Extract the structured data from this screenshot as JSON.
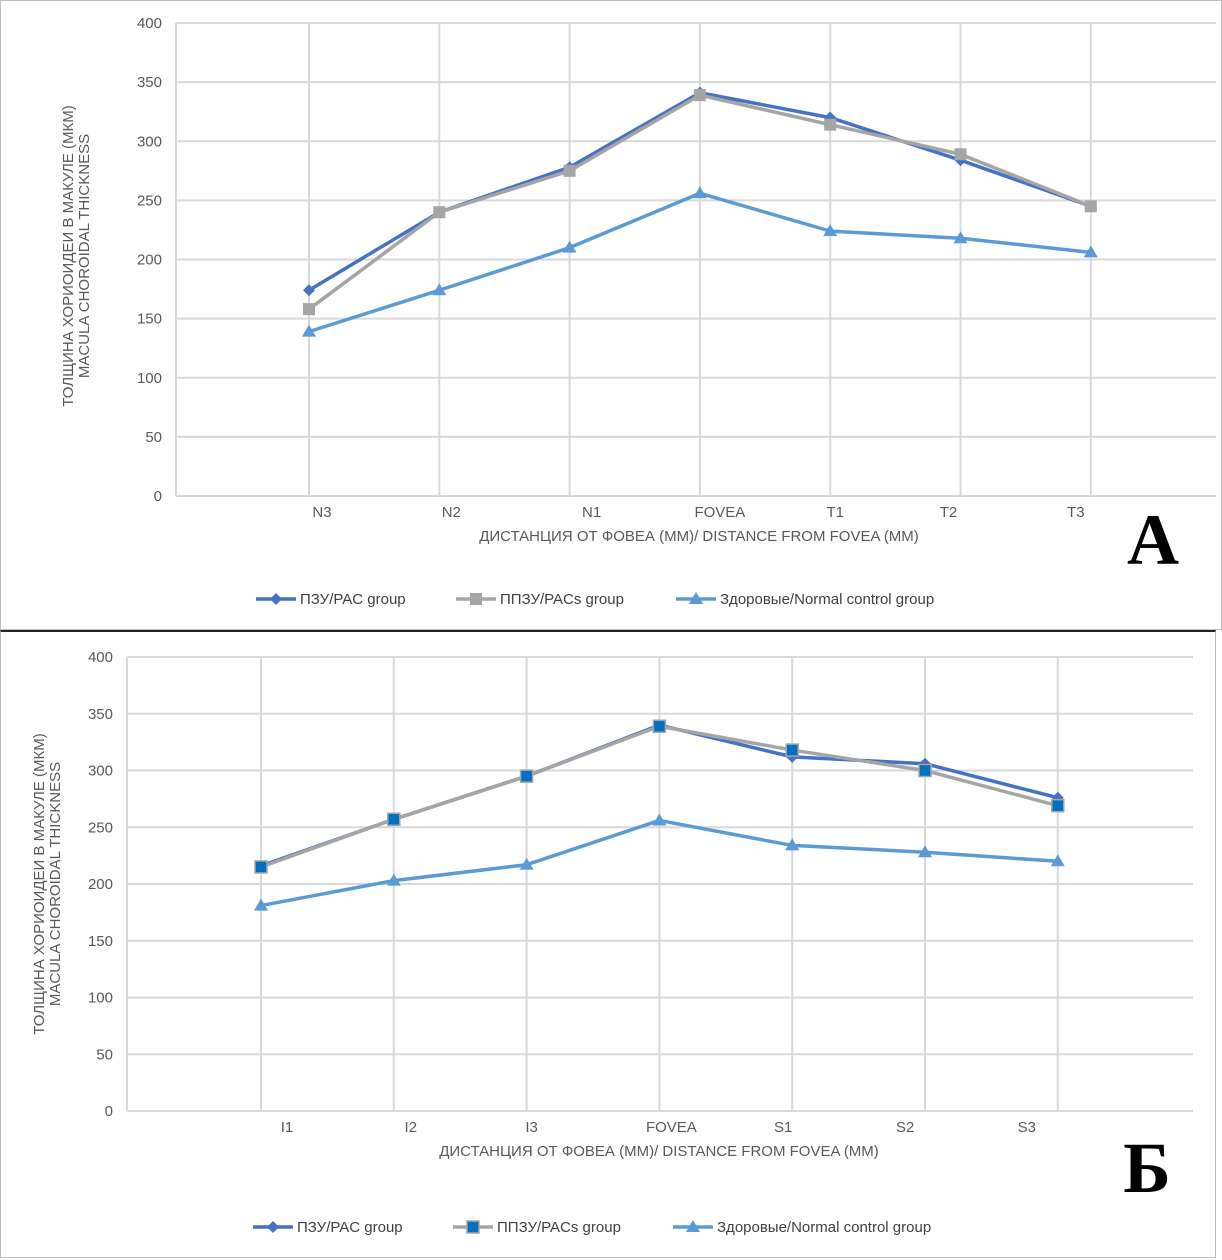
{
  "chart_data": [
    {
      "type": "line",
      "panel_label": "А",
      "title": "",
      "xlabel": "ДИСТАНЦИЯ ОТ ФОВЕА (ММ)/ DISTANCE FROM FOVEA (MM)",
      "ylabel": [
        "ТОЛЩИНА ХОРИОИДЕИ В МАКУЛЕ (МКМ)",
        "MACULA CHOROIDAL THICKNESS"
      ],
      "categories": [
        "N3",
        "N2",
        "N1",
        "FOVEA",
        "T1",
        "T2",
        "T3"
      ],
      "ylim": [
        0,
        400
      ],
      "yticks": [
        0,
        50,
        100,
        150,
        200,
        250,
        300,
        350,
        400
      ],
      "grid": true,
      "legend": "bottom",
      "series": [
        {
          "name": "ПЗУ/PAC group",
          "marker": "diamond",
          "color": "#4472c4",
          "values": [
            174,
            240,
            278,
            341,
            320,
            284,
            245
          ]
        },
        {
          "name": "ППЗУ/PACs group",
          "marker": "square",
          "color": "#a5a5a5",
          "values": [
            158,
            240,
            275,
            339,
            314,
            289,
            245
          ]
        },
        {
          "name": "Здоровые/Normal control group",
          "marker": "triangle",
          "color": "#5b9bd5",
          "values": [
            139,
            174,
            210,
            256,
            224,
            218,
            206
          ]
        }
      ]
    },
    {
      "type": "line",
      "panel_label": "Б",
      "title": "",
      "xlabel": "ДИСТАНЦИЯ ОТ ФОВЕА (ММ)/ DISTANCE FROM FOVEA (MM)",
      "ylabel": [
        "ТОЛЩИНА ХОРИОИДЕИ В МАКУЛЕ (МКМ)",
        "MACULA CHOROIDAL THICKNESS"
      ],
      "categories": [
        "I1",
        "I2",
        "I3",
        "FOVEA",
        "S1",
        "S2",
        "S3"
      ],
      "ylim": [
        0,
        400
      ],
      "yticks": [
        0,
        50,
        100,
        150,
        200,
        250,
        300,
        350,
        400
      ],
      "grid": true,
      "legend": "bottom",
      "series": [
        {
          "name": "ПЗУ/PAC group",
          "marker": "diamond",
          "color": "#4472c4",
          "values": [
            216,
            257,
            295,
            340,
            312,
            306,
            276
          ]
        },
        {
          "name": "ППЗУ/PACs group",
          "marker": "square",
          "color": "#a5a5a5",
          "marker_color": "#0070c0",
          "values": [
            215,
            257,
            295,
            339,
            318,
            300,
            269
          ]
        },
        {
          "name": "Здоровые/Normal control group",
          "marker": "triangle",
          "color": "#5b9bd5",
          "values": [
            181,
            203,
            217,
            256,
            234,
            228,
            220
          ]
        }
      ]
    }
  ]
}
